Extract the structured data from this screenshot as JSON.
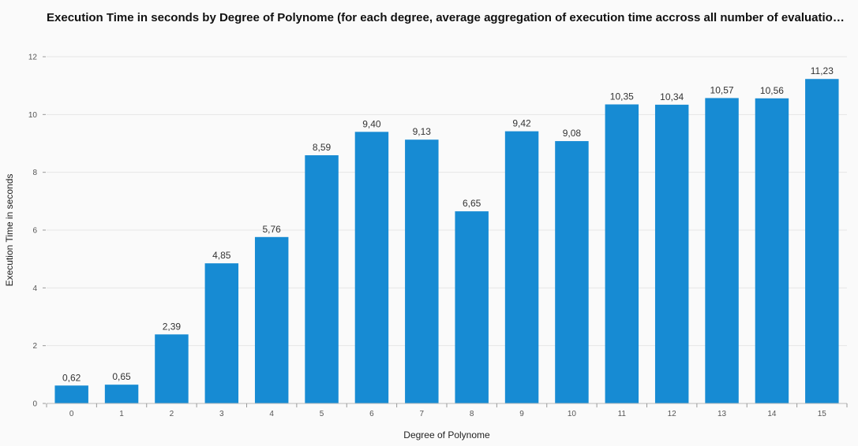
{
  "chart_data": {
    "type": "bar",
    "title": "Execution Time in seconds by Degree of Polynome (for each degree, average aggregation of execution time accross all number of evaluation po...",
    "xlabel": "Degree of Polynome",
    "ylabel": "Execution Time in seconds",
    "categories": [
      "0",
      "1",
      "2",
      "3",
      "4",
      "5",
      "6",
      "7",
      "8",
      "9",
      "10",
      "11",
      "12",
      "13",
      "14",
      "15"
    ],
    "values": [
      0.62,
      0.65,
      2.39,
      4.85,
      5.76,
      8.59,
      9.4,
      9.13,
      6.65,
      9.42,
      9.08,
      10.35,
      10.34,
      10.57,
      10.56,
      11.23
    ],
    "value_labels": [
      "0,62",
      "0,65",
      "2,39",
      "4,85",
      "5,76",
      "8,59",
      "9,40",
      "9,13",
      "6,65",
      "9,42",
      "9,08",
      "10,35",
      "10,34",
      "10,57",
      "10,56",
      "11,23"
    ],
    "ylim": [
      0,
      12
    ],
    "yticks": [
      0,
      2,
      4,
      6,
      8,
      10,
      12
    ],
    "grid": true,
    "bar_color": "#178bd3"
  }
}
